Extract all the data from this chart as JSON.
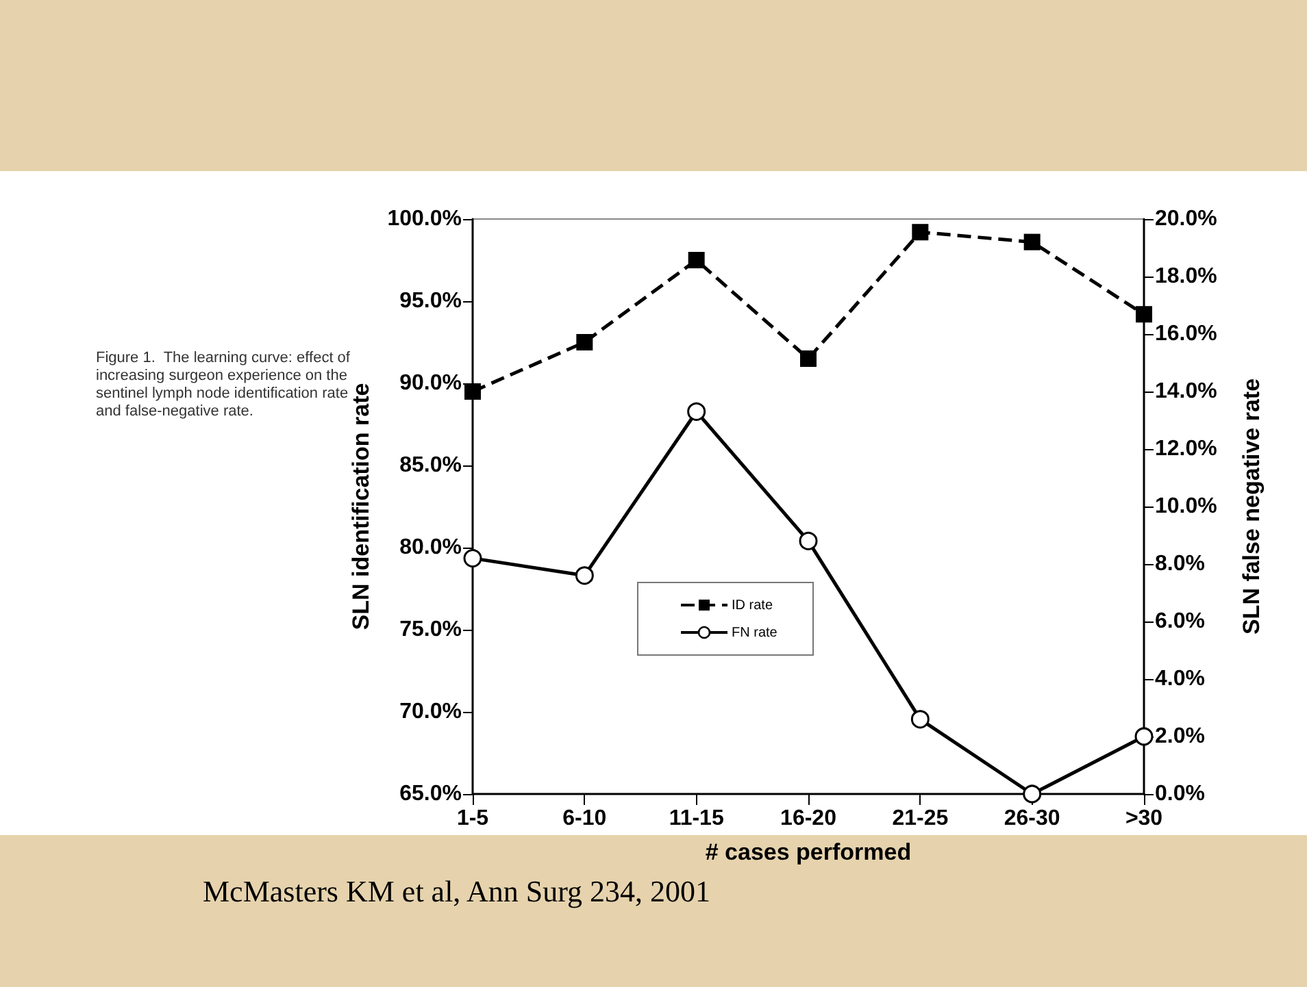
{
  "chart_data": {
    "type": "line",
    "xlabel": "# cases performed",
    "ylabel": "SLN identification rate",
    "y2label": "SLN false negative rate",
    "categories": [
      "1-5",
      "6-10",
      "11-15",
      "16-20",
      "21-25",
      "26-30",
      ">30"
    ],
    "series": [
      {
        "name": "ID rate",
        "color": "#000000",
        "marker": "square",
        "line_style": "dashed",
        "values": [
          89.5,
          92.5,
          97.5,
          91.5,
          99.2,
          98.6,
          94.2
        ]
      },
      {
        "name": "FN rate",
        "color": "#000000",
        "marker": "circle",
        "line_style": "solid",
        "axis": "y2",
        "values": [
          8.2,
          7.6,
          13.3,
          8.8,
          2.6,
          0.0,
          2.0
        ]
      }
    ],
    "ylim": [
      65,
      100
    ],
    "yticks": [
      {
        "value": 65,
        "label": "65.0%"
      },
      {
        "value": 70,
        "label": "70.0%"
      },
      {
        "value": 75,
        "label": "75.0%"
      },
      {
        "value": 80,
        "label": "80.0%"
      },
      {
        "value": 85,
        "label": "85.0%"
      },
      {
        "value": 90,
        "label": "90.0%"
      },
      {
        "value": 95,
        "label": "95.0%"
      },
      {
        "value": 100,
        "label": "100.0%"
      }
    ],
    "y2lim": [
      0,
      20
    ],
    "y2ticks": [
      {
        "value": 0,
        "label": "0.0%"
      },
      {
        "value": 2,
        "label": "2.0%"
      },
      {
        "value": 4,
        "label": "4.0%"
      },
      {
        "value": 6,
        "label": "6.0%"
      },
      {
        "value": 8,
        "label": "8.0%"
      },
      {
        "value": 10,
        "label": "10.0%"
      },
      {
        "value": 12,
        "label": "12.0%"
      },
      {
        "value": 14,
        "label": "14.0%"
      },
      {
        "value": 16,
        "label": "16.0%"
      },
      {
        "value": 18,
        "label": "18.0%"
      },
      {
        "value": 20,
        "label": "20.0%"
      }
    ],
    "grid": false,
    "legend": "bottom left",
    "annotations": [
      "Figure 1.  The learning curve: effect of increasing surgeon experience on the sentinel lymph node identification rate and false-negative rate.",
      "McMasters KM et al, Ann Surg 234, 2001"
    ]
  }
}
